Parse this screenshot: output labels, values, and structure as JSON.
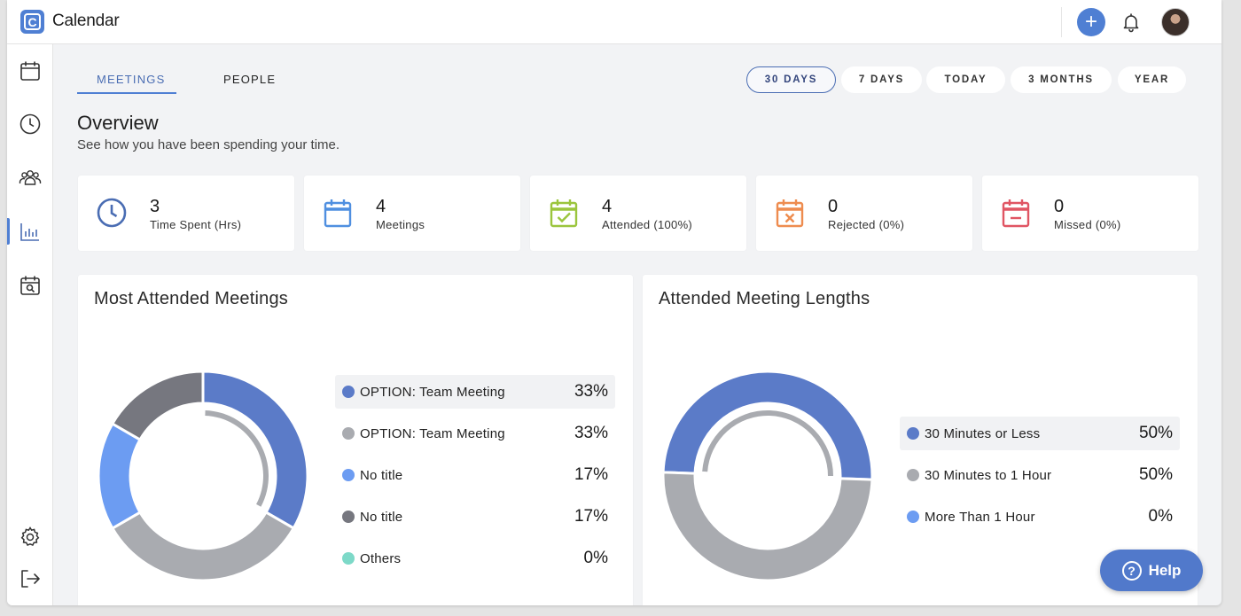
{
  "app": {
    "logo_letter": "C",
    "title": "Calendar"
  },
  "header": {
    "add_icon": "plus-icon",
    "bell_icon": "bell-icon",
    "avatar": "user-avatar"
  },
  "sidebar": {
    "items": [
      {
        "icon": "calendar-icon"
      },
      {
        "icon": "clock-icon"
      },
      {
        "icon": "people-icon"
      },
      {
        "icon": "analytics-icon",
        "active": true
      },
      {
        "icon": "calendar-search-icon"
      }
    ],
    "bottom_items": [
      {
        "icon": "gear-icon"
      },
      {
        "icon": "logout-icon"
      }
    ]
  },
  "tabs": [
    {
      "label": "MEETINGS",
      "active": true
    },
    {
      "label": "PEOPLE",
      "active": false
    }
  ],
  "ranges": [
    {
      "label": "30 DAYS",
      "active": true
    },
    {
      "label": "7 DAYS"
    },
    {
      "label": "TODAY"
    },
    {
      "label": "3 MONTHS"
    },
    {
      "label": "YEAR"
    }
  ],
  "overview": {
    "title": "Overview",
    "subtitle": "See how you have been spending your time."
  },
  "stats": [
    {
      "value": "3",
      "label": "Time Spent (Hrs)",
      "icon": "clock-icon",
      "color": "#4a6db3"
    },
    {
      "value": "4",
      "label": "Meetings",
      "icon": "calendar-icon",
      "color": "#4f8fe0"
    },
    {
      "value": "4",
      "label": "Attended (100%)",
      "icon": "calendar-check-icon",
      "color": "#9bc53d"
    },
    {
      "value": "0",
      "label": "Rejected (0%)",
      "icon": "calendar-x-icon",
      "color": "#ee8c4f"
    },
    {
      "value": "0",
      "label": "Missed (0%)",
      "icon": "calendar-minus-icon",
      "color": "#e05563"
    }
  ],
  "most_attended": {
    "title": "Most Attended Meetings",
    "items": [
      {
        "label": "OPTION: Team Meeting",
        "pct": "33%",
        "value": 33.33,
        "color": "#5b7bc8",
        "highlight": true
      },
      {
        "label": "OPTION: Team Meeting",
        "pct": "33%",
        "value": 33.33,
        "color": "#a9abb0"
      },
      {
        "label": "No title",
        "pct": "17%",
        "value": 16.67,
        "color": "#6c9cf2"
      },
      {
        "label": "No title",
        "pct": "17%",
        "value": 16.67,
        "color": "#76777f"
      },
      {
        "label": "Others",
        "pct": "0%",
        "value": 0,
        "color": "#7dd9c8"
      }
    ]
  },
  "meeting_lengths": {
    "title": "Attended Meeting Lengths",
    "items": [
      {
        "label": "30 Minutes or Less",
        "pct": "50%",
        "value": 50,
        "color": "#5b7bc8",
        "highlight": true
      },
      {
        "label": "30 Minutes to 1 Hour",
        "pct": "50%",
        "value": 50,
        "color": "#a9abb0"
      },
      {
        "label": "More Than 1 Hour",
        "pct": "0%",
        "value": 0,
        "color": "#6c9cf2"
      }
    ]
  },
  "help": {
    "label": "Help",
    "icon": "question-icon"
  }
}
